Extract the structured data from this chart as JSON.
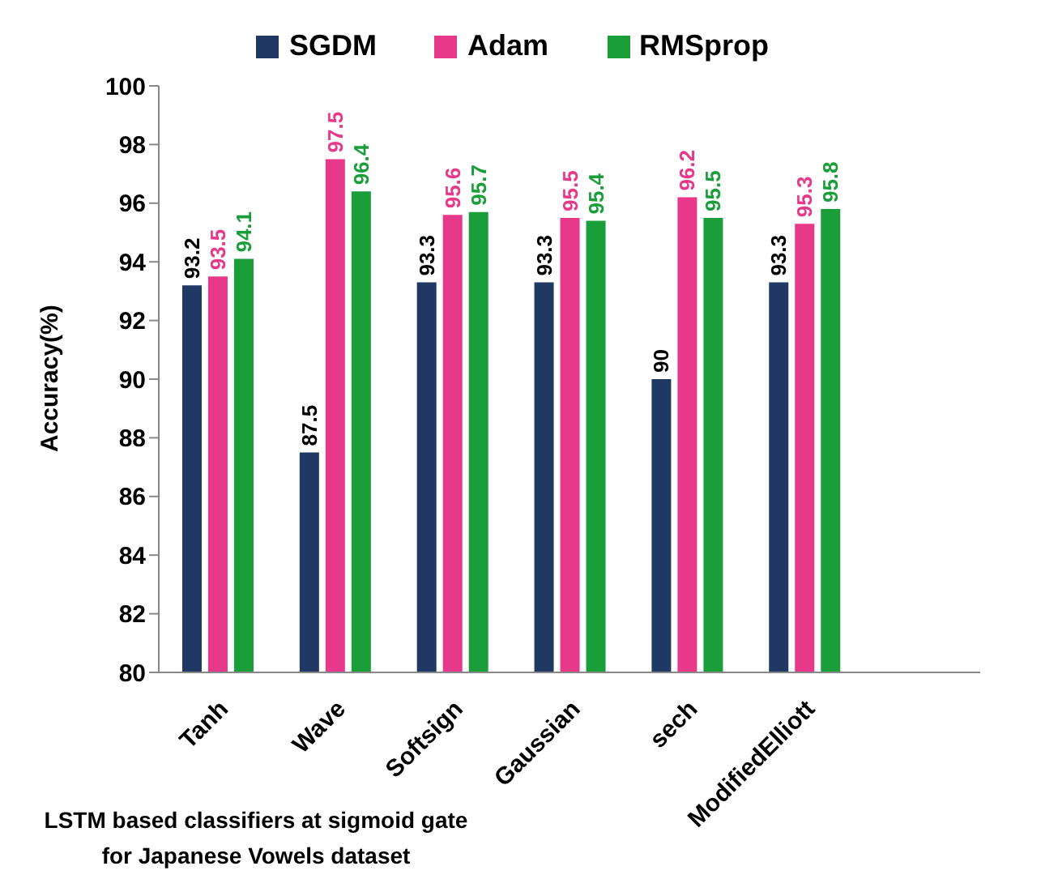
{
  "chart_data": {
    "type": "bar",
    "ylabel": "Accuracy(%)",
    "categories": [
      "Tanh",
      "Wave",
      "Softsign",
      "Gaussian",
      "sech",
      "ModifiedElliott",
      null
    ],
    "series": [
      {
        "name": "SGDM",
        "color": "#1f3864",
        "values": [
          93.2,
          87.5,
          93.3,
          93.3,
          90,
          93.3,
          null
        ]
      },
      {
        "name": "Adam",
        "color": "#e8388a",
        "values": [
          93.5,
          97.5,
          95.6,
          95.5,
          96.2,
          95.3,
          null
        ]
      },
      {
        "name": "RMSprop",
        "color": "#1a9e3a",
        "values": [
          94.1,
          96.4,
          95.7,
          95.4,
          95.5,
          95.8,
          null
        ]
      }
    ],
    "ylim": [
      80,
      100
    ],
    "yticks": [
      80,
      82,
      84,
      86,
      88,
      90,
      92,
      94,
      96,
      98,
      100
    ],
    "grid": false,
    "legend": "top",
    "data_labels": true,
    "annotations": [
      "LSTM based classifiers at sigmoid gate for Japanese Vowels dataset"
    ]
  }
}
